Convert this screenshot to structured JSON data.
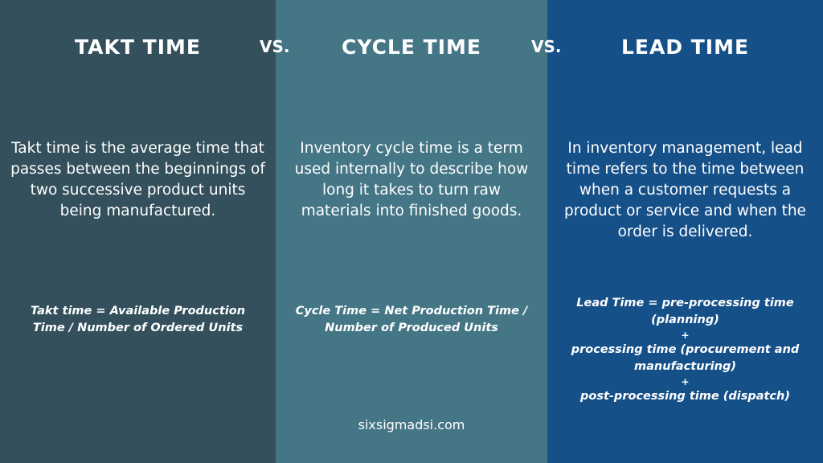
{
  "colors": {
    "takt_bg": "#33505c",
    "cycle_bg": "#457686",
    "lead_bg": "#165089",
    "text": "#ffffff"
  },
  "separators": [
    "VS.",
    "VS."
  ],
  "columns": [
    {
      "title": "TAKT TIME",
      "description": "Takt time is the average time that passes between the beginnings of two successive product units being manufactured.",
      "formula": "Takt time = Available Production Time / Number of Ordered Units"
    },
    {
      "title": "CYCLE TIME",
      "description": "Inventory cycle time is a term used internally to describe how long it takes to turn raw materials into finished goods.",
      "formula": "Cycle Time = Net Production Time / Number of Produced Units"
    },
    {
      "title": "LEAD TIME",
      "description": "In inventory management, lead time refers to the time between when a customer requests a product or service and when the order is delivered.",
      "formula_lines": [
        "Lead Time = pre-processing time (planning)",
        "+",
        "processing time (procurement and manufacturing)",
        "+",
        "post-processing time (dispatch)"
      ]
    }
  ],
  "footer": "sixsigmadsi.com"
}
